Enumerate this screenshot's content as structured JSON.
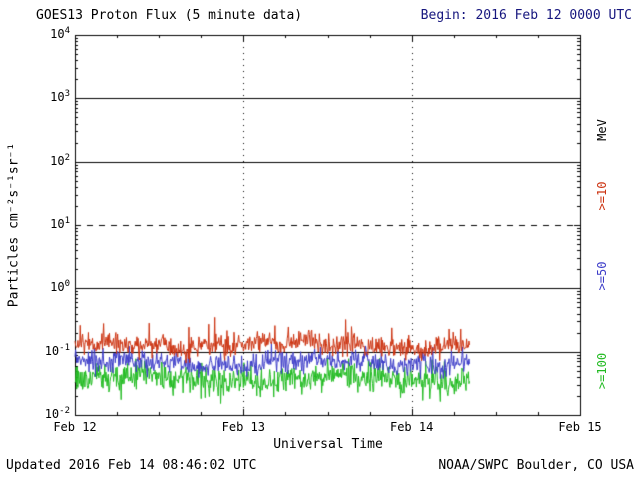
{
  "header": {
    "title": "GOES13 Proton Flux (5 minute data)",
    "begin_label": "Begin: 2016 Feb 12 0000 UTC"
  },
  "footer": {
    "updated": "Updated 2016 Feb 14 08:46:02 UTC",
    "source": "NOAA/SWPC Boulder, CO USA"
  },
  "axes": {
    "y_label": "Particles cm⁻²s⁻¹sr⁻¹",
    "x_label": "Universal Time",
    "x_tick_labels": [
      "Feb 12",
      "Feb 13",
      "Feb 14",
      "Feb 15"
    ],
    "y_tick_labels": [
      "10^4",
      "10^3",
      "10^2",
      "10^1",
      "10^0",
      "10^-1",
      "10^-2"
    ]
  },
  "right_axis_labels": [
    {
      "text": "MeV",
      "color": "#000000"
    },
    {
      "text": ">=10",
      "color": "#cc3311"
    },
    {
      "text": ">=50",
      "color": "#3c3cc8"
    },
    {
      "text": ">=100",
      "color": "#22bb22"
    }
  ],
  "colors": {
    "begin_text": "#16167e",
    "axis": "#000000",
    "background": "#ffffff"
  },
  "chart_data": {
    "type": "line",
    "title": "GOES13 Proton Flux (5 minute data)",
    "xlabel": "Universal Time",
    "ylabel": "Particles cm^-2 s^-1 sr^-1",
    "y_scale": "log10",
    "ylim": [
      0.01,
      10000
    ],
    "x_days": [
      "Feb 12",
      "Feb 13",
      "Feb 14",
      "Feb 15"
    ],
    "solid_gridline_values": [
      1000,
      100,
      1,
      0.1
    ],
    "solid_gridline_exponents": [
      3,
      2,
      0,
      -1
    ],
    "dashed_threshold_value": 10,
    "dashed_threshold_exponent": 1,
    "vertical_gridlines_at_days": [
      1,
      2
    ],
    "cadence_minutes": 5,
    "data_end_day_fraction": 2.35,
    "series": [
      {
        "name": ">=100 MeV",
        "color": "#22bb22",
        "approx_flux_range": [
          0.02,
          0.07
        ],
        "log10_mean": -1.42,
        "log10_sigma": 0.11,
        "spike_prob": 0.05,
        "spike_log10": 0.22,
        "spike_direction": -1,
        "seed": 301
      },
      {
        "name": ">=50 MeV",
        "color": "#3c3cc8",
        "approx_flux_range": [
          0.04,
          0.11
        ],
        "log10_mean": -1.17,
        "log10_sigma": 0.08,
        "spike_prob": 0.03,
        "spike_log10": 0.15,
        "spike_direction": 1,
        "seed": 302
      },
      {
        "name": ">=10 MeV",
        "color": "#cc3311",
        "approx_flux_range": [
          0.09,
          0.4
        ],
        "log10_mean": -0.9,
        "log10_sigma": 0.08,
        "spike_prob": 0.05,
        "spike_log10": 0.35,
        "spike_direction": 1,
        "seed": 303
      }
    ]
  }
}
